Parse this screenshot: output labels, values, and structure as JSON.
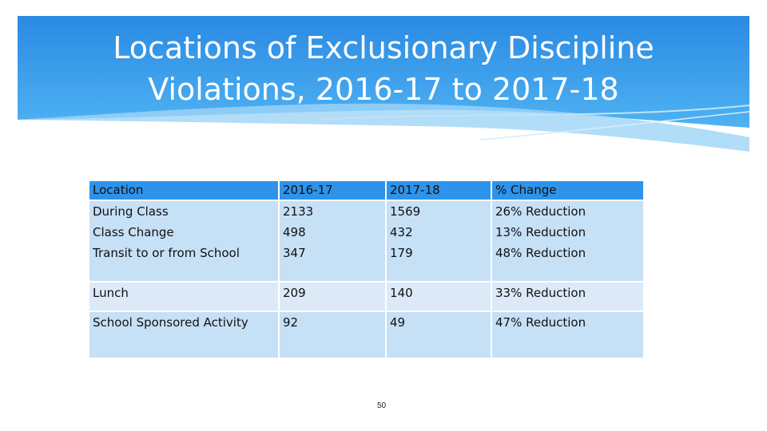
{
  "title": {
    "line1": "Locations of Exclusionary Discipline",
    "line2": "Violations, 2016-17 to 2017-18"
  },
  "table": {
    "headers": [
      "Location",
      "2016-17",
      "2017-18",
      "% Change"
    ],
    "grouped_rows": [
      [
        "During Class",
        "2133",
        "1569",
        "26% Reduction"
      ],
      [
        "Class Change",
        "498",
        "432",
        "13% Reduction"
      ],
      [
        "Transit to or from School",
        "347",
        "179",
        "48% Reduction"
      ]
    ],
    "rows": [
      [
        "Lunch",
        "209",
        "140",
        "33% Reduction"
      ],
      [
        "School Sponsored Activity",
        "92",
        "49",
        "47% Reduction"
      ]
    ]
  },
  "page_number": "50",
  "colors": {
    "banner": "#2c8fe6",
    "header_row": "#2e93ea",
    "row_fill": "#c6e0f6"
  }
}
